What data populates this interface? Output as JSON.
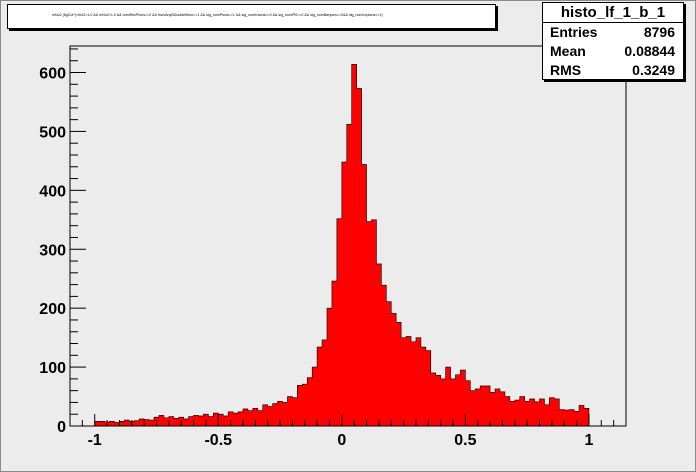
{
  "cut_text": "mNu2 (bgCut*)<rho2<1.0 && mNu2<1.0 && numRecPions==2 && fromAnyBDoubleMom==1 && sig_numPions==1 && sig_numKaons==0 && sig_numPi0==0 && sig_numBaryons==0&& sig_numLeptons==1)",
  "stats": {
    "title": "histo_lf_1_b_1",
    "rows": [
      {
        "name": "Entries",
        "value": "8796"
      },
      {
        "name": "Mean",
        "value": "0.08844"
      },
      {
        "name": "RMS",
        "value": "0.3249"
      }
    ]
  },
  "colors": {
    "fill": "#ff0000",
    "frame_bg": "#ececec",
    "line": "#000000"
  },
  "chart_data": {
    "type": "bar",
    "title": "",
    "xlabel": "",
    "ylabel": "",
    "xlim": [
      -1.1,
      1.15
    ],
    "ylim": [
      0,
      645
    ],
    "bin_edges_range": [
      -1.0,
      1.0
    ],
    "bin_width": 0.02,
    "x_ticks": [
      -1,
      -0.5,
      0,
      0.5,
      1
    ],
    "x_tick_labels": [
      "-1",
      "-0.5",
      "0",
      "0.5",
      "1"
    ],
    "y_ticks": [
      0,
      100,
      200,
      300,
      400,
      500,
      600
    ],
    "y_tick_labels": [
      "0",
      "100",
      "200",
      "300",
      "400",
      "500",
      "600"
    ],
    "values": [
      8,
      8,
      7,
      8,
      6,
      8,
      10,
      8,
      9,
      12,
      11,
      10,
      15,
      18,
      14,
      16,
      13,
      15,
      12,
      16,
      18,
      17,
      20,
      16,
      22,
      20,
      17,
      24,
      22,
      24,
      29,
      26,
      30,
      26,
      36,
      33,
      38,
      42,
      40,
      50,
      48,
      69,
      71,
      82,
      100,
      134,
      146,
      200,
      246,
      352,
      448,
      512,
      614,
      573,
      444,
      347,
      350,
      275,
      239,
      211,
      191,
      176,
      150,
      152,
      143,
      150,
      134,
      128,
      90,
      86,
      80,
      100,
      80,
      87,
      95,
      77,
      60,
      63,
      68,
      68,
      57,
      63,
      58,
      50,
      42,
      44,
      50,
      42,
      46,
      41,
      46,
      36,
      48,
      46,
      28,
      27,
      28,
      25,
      35,
      30
    ]
  }
}
